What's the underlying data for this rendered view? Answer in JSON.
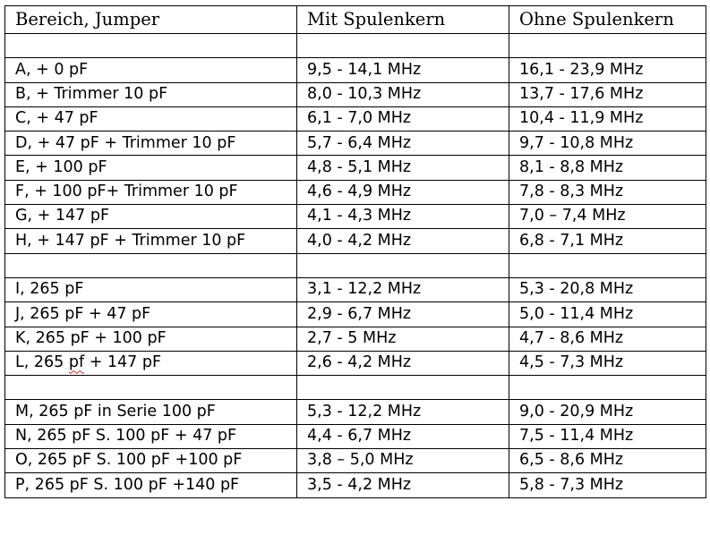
{
  "table": {
    "headers": [
      "Bereich, Jumper",
      "Mit Spulenkern",
      "Ohne Spulenkern"
    ],
    "rows": [
      [
        "",
        "",
        ""
      ],
      [
        "A, + 0 pF",
        "9,5 - 14,1 MHz",
        "16,1 - 23,9 MHz"
      ],
      [
        "B, + Trimmer 10 pF",
        "8,0 - 10,3 MHz",
        "13,7 - 17,6 MHz"
      ],
      [
        "C, + 47 pF",
        "6,1 - 7,0 MHz",
        "10,4 - 11,9 MHz"
      ],
      [
        "D, + 47 pF + Trimmer 10 pF",
        "5,7 - 6,4 MHz",
        "9,7 - 10,8 MHz"
      ],
      [
        "E, + 100 pF",
        "4,8 - 5,1 MHz",
        "8,1 - 8,8 MHz"
      ],
      [
        "F, + 100  pF+ Trimmer 10 pF",
        "4,6 - 4,9 MHz",
        "7,8 - 8,3 MHz"
      ],
      [
        "G, + 147 pF",
        "4,1 - 4,3 MHz",
        "7,0 – 7,4 MHz"
      ],
      [
        "H, + 147 pF + Trimmer 10 pF",
        "4,0 - 4,2 MHz",
        "6,8 - 7,1 MHz"
      ],
      [
        "",
        "",
        ""
      ],
      [
        "I, 265 pF",
        "3,1 - 12,2 MHz",
        "5,3 - 20,8 MHz"
      ],
      [
        "J, 265 pF + 47 pF",
        "2,9 - 6,7 MHz",
        "5,0 - 11,4 MHz"
      ],
      [
        "K, 265 pF + 100 pF",
        "2,7 - 5 MHz",
        "4,7 - 8,6 MHz"
      ],
      [
        "L, 265 pf + 147 pF",
        "2,6 - 4,2 MHz",
        "4,5 - 7,3 MHz"
      ],
      [
        "",
        "",
        ""
      ],
      [
        "M, 265 pF in Serie 100 pF",
        "5,3 - 12,2 MHz",
        "9,0 - 20,9 MHz"
      ],
      [
        "N, 265 pF S. 100 pF + 47 pF",
        "4,4 - 6,7 MHz",
        "7,5 - 11,4 MHz"
      ],
      [
        "O, 265 pF S. 100 pF +100 pF",
        "3,8 – 5,0 MHz",
        "6,5 - 8,6 MHz"
      ],
      [
        "P, 265 pF S. 100 pF +140 pF",
        "3,5 - 4,2 MHz",
        "5,8 - 7,3 MHz"
      ]
    ]
  }
}
